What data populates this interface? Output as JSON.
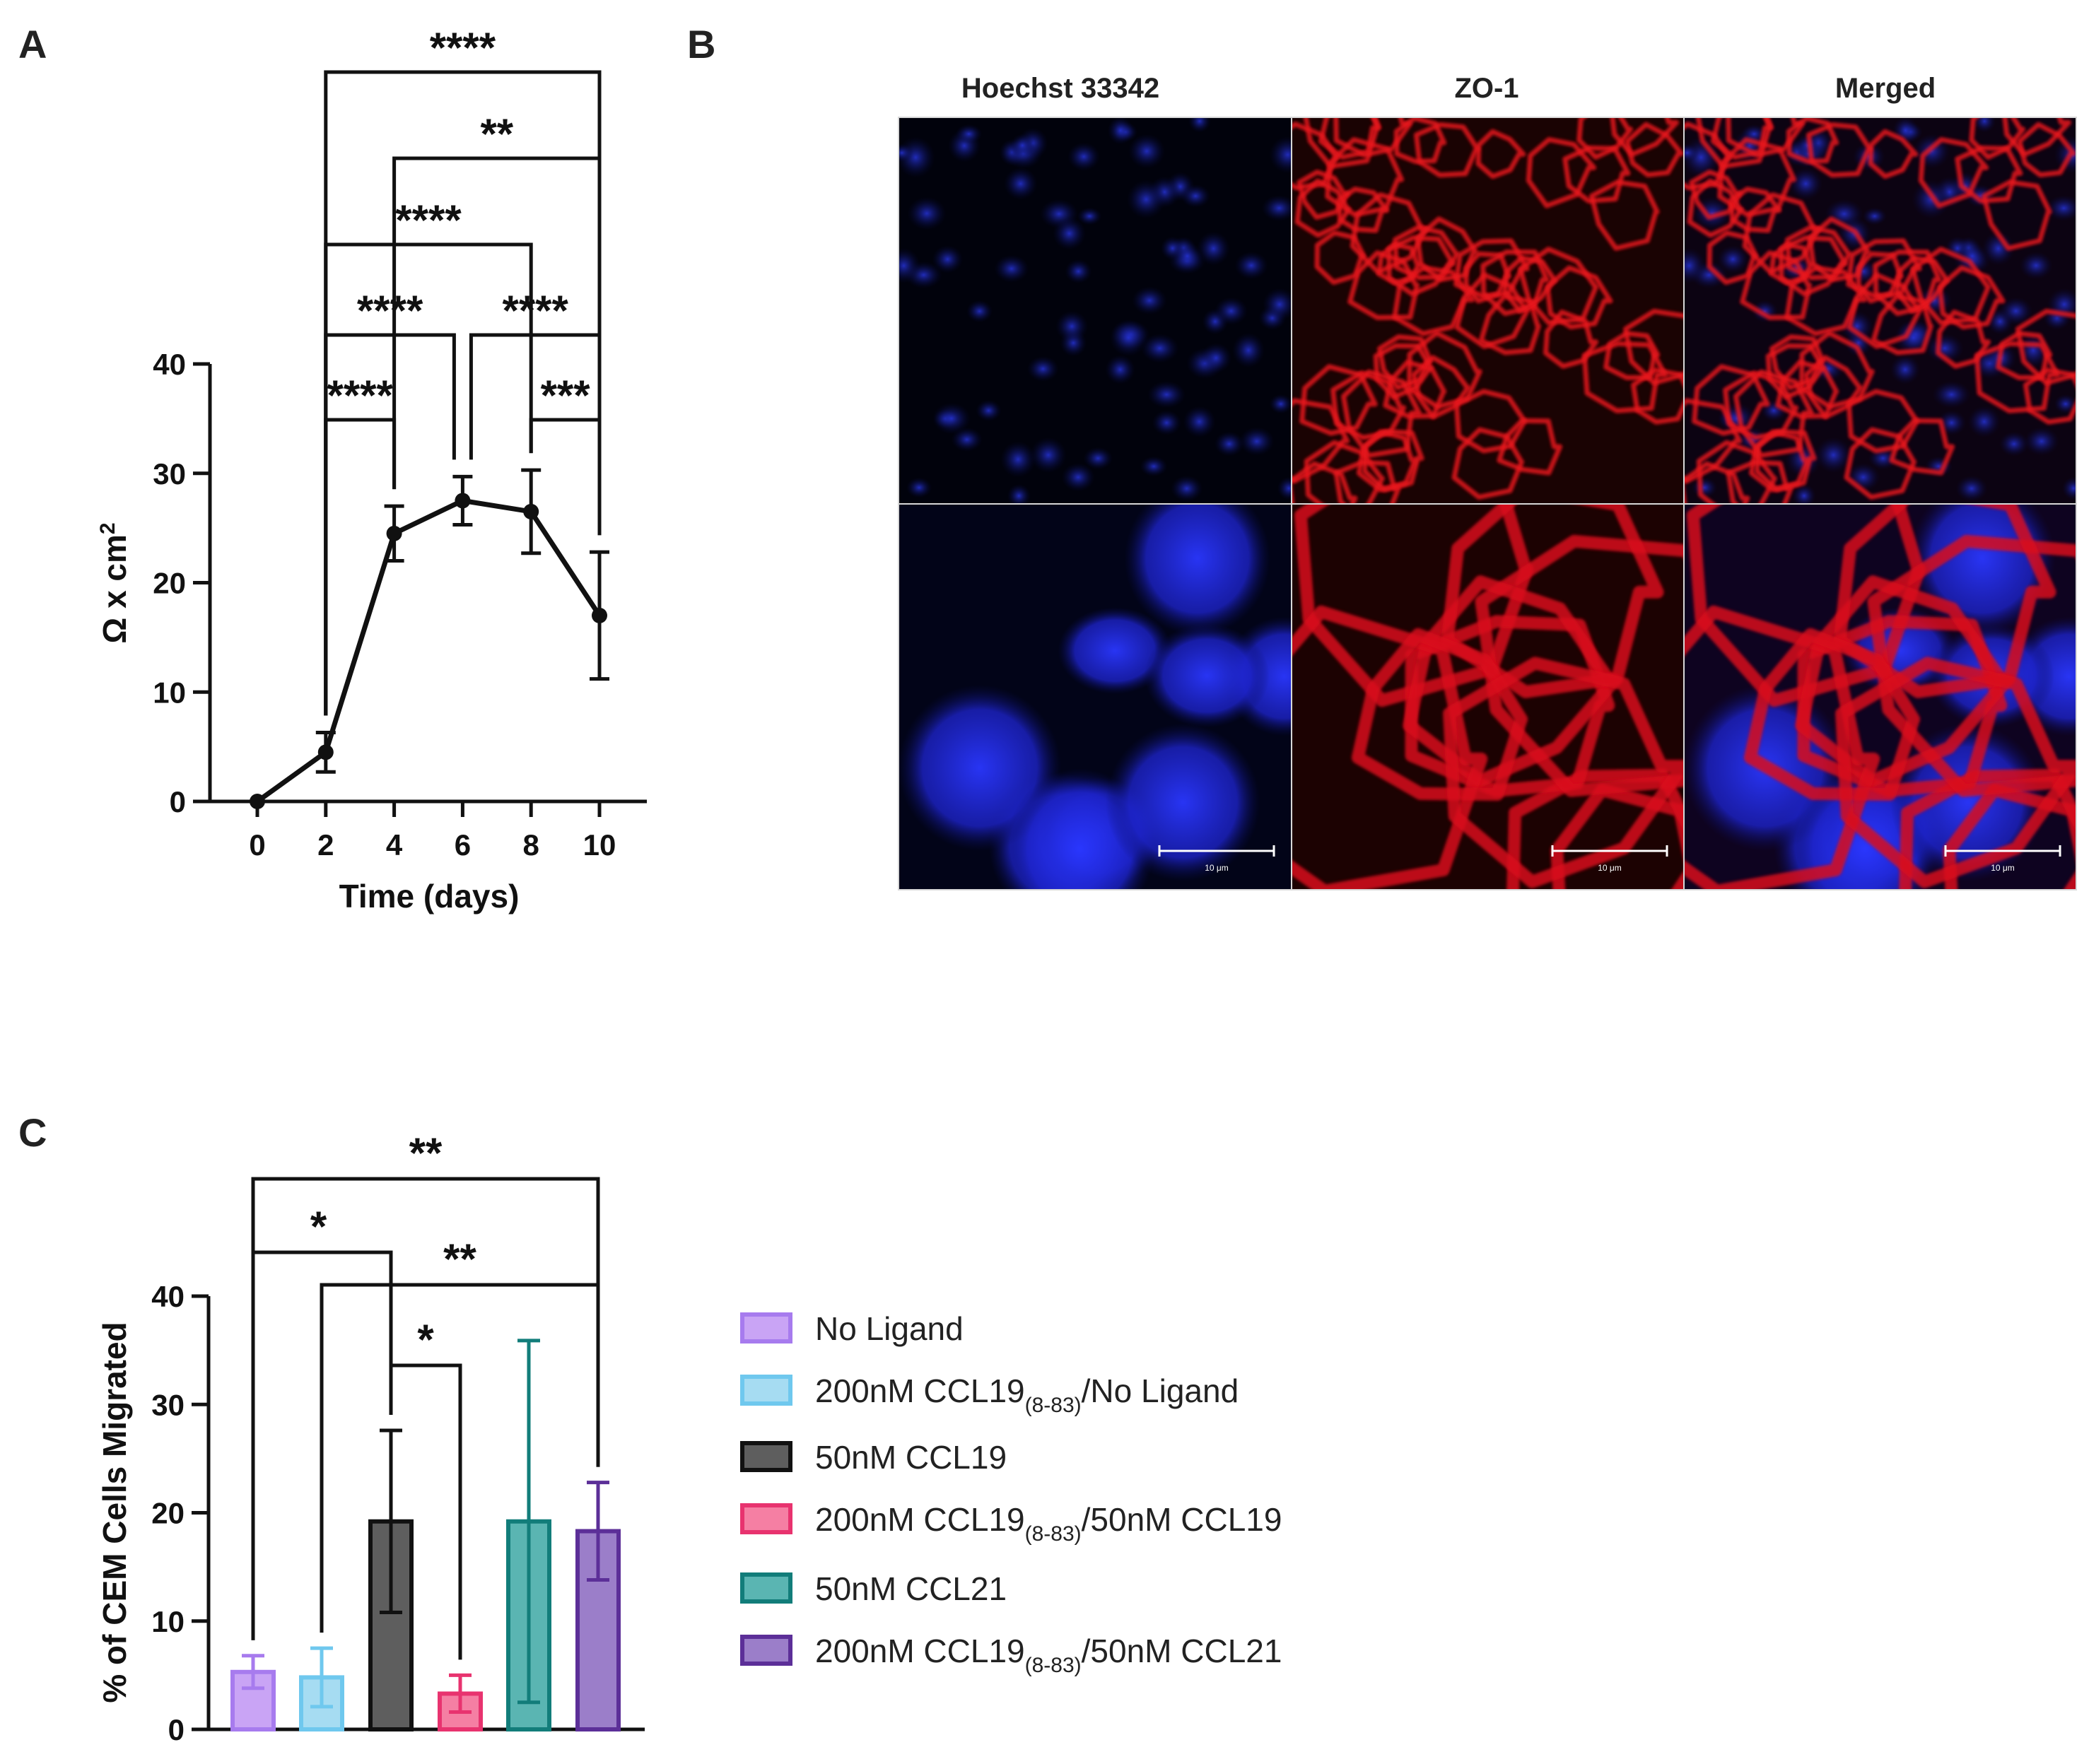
{
  "panels": {
    "a_letter": "A",
    "b_letter": "B",
    "c_letter": "C"
  },
  "chart_data": [
    {
      "panel": "A",
      "type": "line",
      "xlabel": "Time (days)",
      "ylabel": "Ω x cm",
      "ylabel_superscript": "2",
      "x_ticks": [
        "0",
        "2",
        "4",
        "6",
        "8",
        "10"
      ],
      "y_ticks": [
        "0",
        "10",
        "20",
        "30",
        "40"
      ],
      "xlim": [
        0,
        10
      ],
      "ylim": [
        0,
        40
      ],
      "x": [
        0,
        2,
        4,
        6,
        8,
        10
      ],
      "values": [
        0,
        4.5,
        24.5,
        27.5,
        26.5,
        17
      ],
      "error": [
        0,
        1.8,
        2.5,
        2.2,
        3.8,
        5.8
      ],
      "color": "#111111",
      "significance": [
        {
          "from": 2,
          "to": 4,
          "stars": "****"
        },
        {
          "from": 8,
          "to": 10,
          "stars": "***"
        },
        {
          "from": 2,
          "to": 6,
          "stars": "****"
        },
        {
          "from": 6,
          "to": 10,
          "stars": "****"
        },
        {
          "from": 2,
          "to": 8,
          "stars": "****"
        },
        {
          "from": 4,
          "to": 10,
          "stars": "**"
        },
        {
          "from": 2,
          "to": 10,
          "stars": "****"
        }
      ]
    },
    {
      "panel": "C",
      "type": "bar",
      "ylabel": "% of CEM Cells Migrated",
      "y_ticks": [
        "0",
        "10",
        "20",
        "30",
        "40"
      ],
      "ylim": [
        0,
        40
      ],
      "values": [
        5.3,
        4.8,
        19.2,
        3.3,
        19.2,
        18.3
      ],
      "error": [
        1.5,
        2.7,
        8.4,
        1.7,
        16.7,
        4.5
      ],
      "colors": [
        "#c9a4f5",
        "#a6dcf2",
        "#5e5e5e",
        "#f57fa3",
        "#5ab5b2",
        "#9b7ec9"
      ],
      "edge_colors": [
        "#a77bee",
        "#6fc8ee",
        "#111111",
        "#e8336f",
        "#127d7a",
        "#5c2f98"
      ],
      "legend": [
        {
          "main": "No Ligand",
          "sub": "",
          "tail": ""
        },
        {
          "main": "200nM CCL19",
          "sub": "(8-83)",
          "tail": "/No Ligand"
        },
        {
          "main": "50nM CCL19",
          "sub": "",
          "tail": ""
        },
        {
          "main": "200nM CCL19",
          "sub": "(8-83)",
          "tail": "/50nM CCL19"
        },
        {
          "main": "50nM CCL21",
          "sub": "",
          "tail": ""
        },
        {
          "main": "200nM CCL19",
          "sub": "(8-83)",
          "tail": "/50nM CCL21"
        }
      ],
      "significance": [
        {
          "from": 0,
          "to": 5,
          "stars": "**"
        },
        {
          "from": 0,
          "to": 2,
          "stars": "*"
        },
        {
          "from": 1,
          "to": 5,
          "stars": "**"
        },
        {
          "from": 2,
          "to": 3,
          "stars": "*"
        }
      ]
    }
  ],
  "micrographs": {
    "columns": [
      "Hoechst 33342",
      "ZO-1",
      "Merged"
    ],
    "scale_bar_label": "10 μm"
  }
}
